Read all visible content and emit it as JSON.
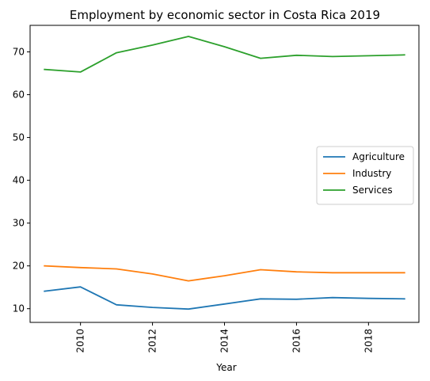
{
  "chart_data": {
    "type": "line",
    "title": "Employment by economic sector in Costa Rica 2019",
    "xlabel": "Year",
    "ylabel": "",
    "x": [
      2009,
      2010,
      2011,
      2012,
      2013,
      2014,
      2015,
      2016,
      2017,
      2018,
      2019
    ],
    "xlim": [
      2008.6,
      2019.4
    ],
    "ylim": [
      6.8,
      76.2
    ],
    "xticks": [
      2010,
      2012,
      2014,
      2016,
      2018
    ],
    "xtick_labels": [
      "2010",
      "2012",
      "2014",
      "2016",
      "2018"
    ],
    "xtick_rotation": "vertical",
    "yticks": [
      10,
      20,
      30,
      40,
      50,
      60,
      70
    ],
    "ytick_labels": [
      "10",
      "20",
      "30",
      "40",
      "50",
      "60",
      "70"
    ],
    "grid": false,
    "legend_position": "center-right",
    "series": [
      {
        "name": "Agriculture",
        "color": "#1f77b4",
        "values": [
          14.1,
          15.1,
          10.9,
          10.3,
          9.9,
          11.1,
          12.3,
          12.2,
          12.6,
          12.4,
          12.3
        ]
      },
      {
        "name": "Industry",
        "color": "#ff7f0e",
        "values": [
          20.0,
          19.6,
          19.3,
          18.1,
          16.5,
          17.7,
          19.1,
          18.6,
          18.4,
          18.4,
          18.4
        ]
      },
      {
        "name": "Services",
        "color": "#2ca02c",
        "values": [
          65.9,
          65.3,
          69.8,
          71.6,
          73.6,
          71.2,
          68.5,
          69.2,
          68.9,
          69.1,
          69.3
        ]
      }
    ]
  }
}
